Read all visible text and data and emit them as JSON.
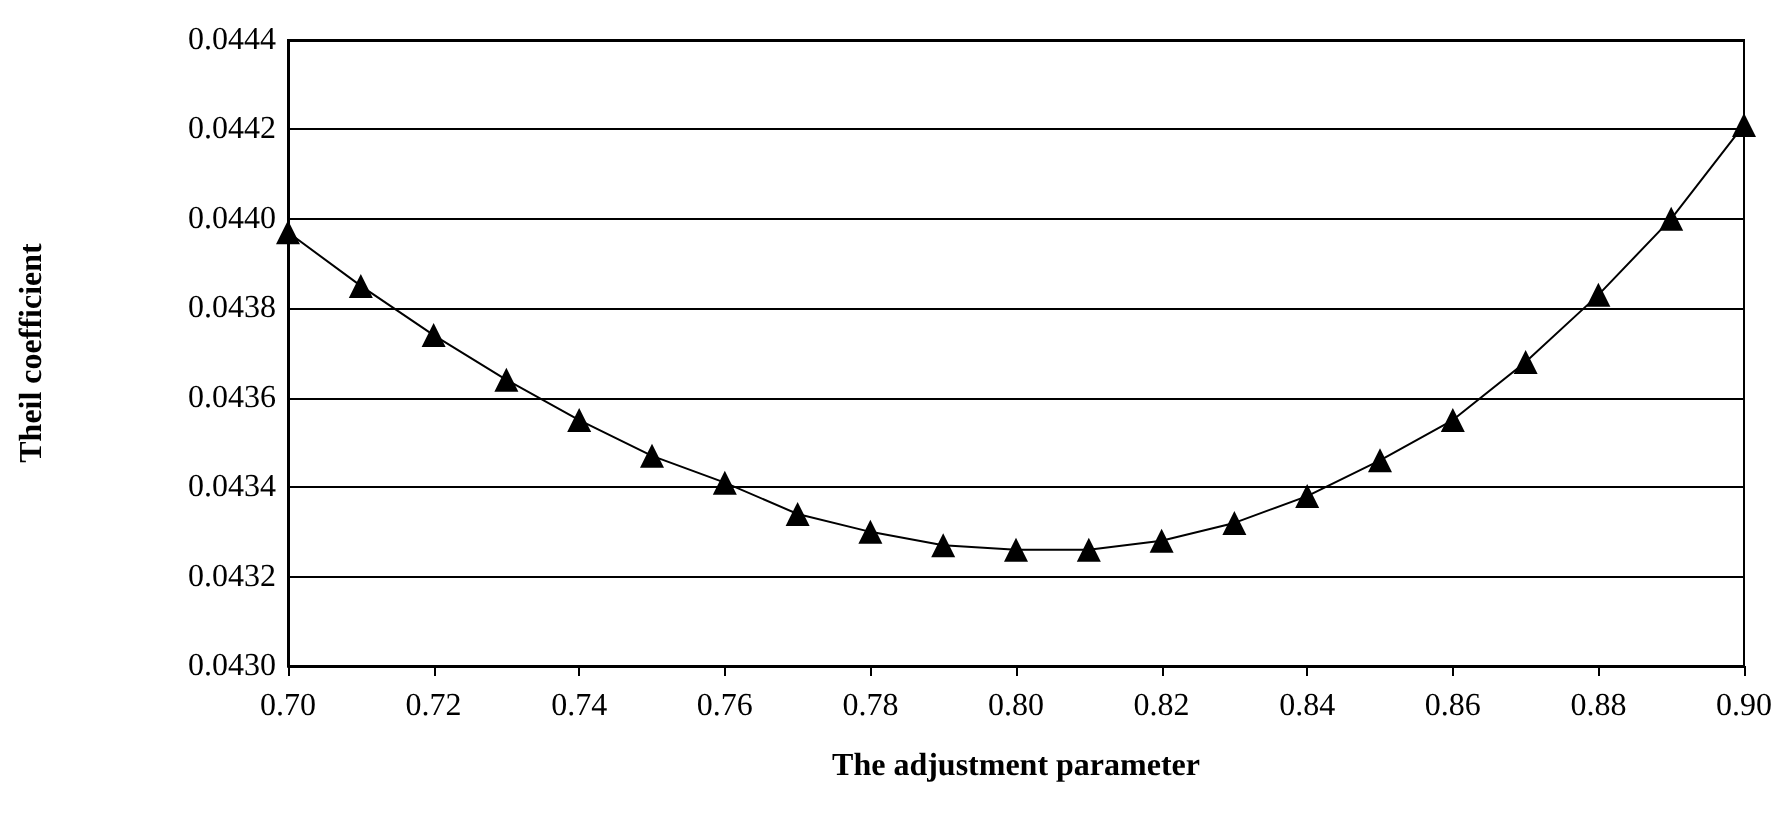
{
  "chart_data": {
    "type": "line",
    "xlabel": "The adjustment parameter",
    "ylabel": "Theil coefficient",
    "x": [
      0.7,
      0.71,
      0.72,
      0.73,
      0.74,
      0.75,
      0.76,
      0.77,
      0.78,
      0.79,
      0.8,
      0.81,
      0.82,
      0.83,
      0.84,
      0.85,
      0.86,
      0.87,
      0.88,
      0.89,
      0.9
    ],
    "series": [
      {
        "color": "#000000",
        "values": [
          0.04397,
          0.04385,
          0.04374,
          0.04364,
          0.04355,
          0.04347,
          0.04341,
          0.04334,
          0.0433,
          0.04327,
          0.04326,
          0.04326,
          0.04328,
          0.04332,
          0.04338,
          0.04346,
          0.04355,
          0.04368,
          0.04383,
          0.044,
          0.04421
        ]
      }
    ],
    "xlim": [
      0.7,
      0.9
    ],
    "xticks": [
      {
        "value": 0.7,
        "label": "0.70"
      },
      0.72,
      0.74,
      0.76,
      0.78,
      {
        "value": 0.8,
        "label": "0.80"
      },
      0.82,
      0.84,
      0.86,
      0.88,
      {
        "value": 0.9,
        "label": "0.90"
      }
    ],
    "ylim": [
      0.043,
      0.0444
    ],
    "yticks": [
      {
        "value": 0.043,
        "label": "0.0430"
      },
      0.0432,
      0.0434,
      0.0436,
      0.0438,
      {
        "value": 0.044,
        "label": "0.0440"
      },
      0.0442,
      0.0444
    ],
    "grid": "y",
    "marker": "triangle",
    "line_style": "solid"
  }
}
